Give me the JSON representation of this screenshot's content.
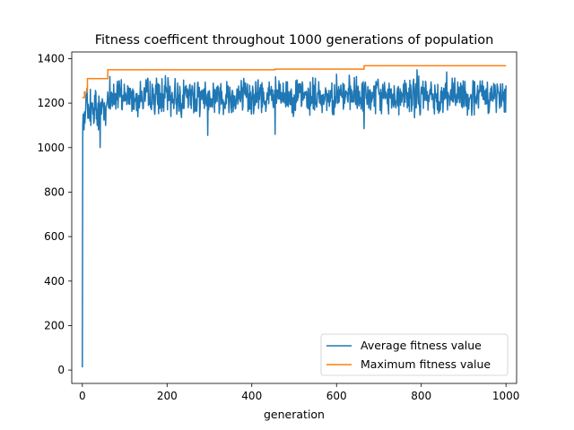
{
  "chart_data": {
    "type": "line",
    "title": "Fitness coefficent throughout 1000 generations of population",
    "xlabel": "generation",
    "ylabel": "",
    "xlim": [
      -25,
      1025
    ],
    "ylim": [
      -60,
      1430
    ],
    "xticks": [
      0,
      200,
      400,
      600,
      800,
      1000
    ],
    "yticks": [
      0,
      200,
      400,
      600,
      800,
      1000,
      1200,
      1400
    ],
    "grid": false,
    "legend_position": "lower-right",
    "series": [
      {
        "name": "Average fitness value",
        "color": "#1f77b4",
        "band": {
          "x_start": 8,
          "x_end": 1000,
          "center": 1230,
          "amplitude": 70,
          "seed": 7
        },
        "points": [
          [
            0,
            12
          ],
          [
            1,
            1100
          ],
          [
            2,
            1150
          ],
          [
            3,
            1120
          ],
          [
            4,
            1080
          ],
          [
            5,
            1160
          ],
          [
            6,
            1110
          ],
          [
            7,
            1140
          ],
          [
            15,
            1180
          ],
          [
            18,
            1120
          ],
          [
            20,
            1100
          ],
          [
            22,
            1200
          ],
          [
            25,
            1150
          ],
          [
            28,
            1120
          ],
          [
            30,
            1170
          ],
          [
            35,
            1100
          ],
          [
            38,
            1080
          ],
          [
            40,
            1200
          ],
          [
            42,
            1000
          ],
          [
            45,
            1150
          ],
          [
            48,
            1210
          ],
          [
            50,
            1180
          ],
          [
            55,
            1100
          ],
          [
            58,
            1200
          ],
          [
            60,
            1250
          ],
          [
            62,
            1180
          ],
          [
            65,
            1320
          ],
          [
            296,
            1055
          ],
          [
            455,
            1060
          ],
          [
            665,
            1085
          ],
          [
            600,
            1330
          ],
          [
            790,
            1350
          ],
          [
            860,
            1340
          ]
        ]
      },
      {
        "name": "Maximum fitness value",
        "color": "#ff7f0e",
        "points": [
          [
            0,
            1225
          ],
          [
            5,
            1225
          ],
          [
            5,
            1250
          ],
          [
            12,
            1250
          ],
          [
            12,
            1310
          ],
          [
            25,
            1310
          ],
          [
            60,
            1310
          ],
          [
            60,
            1350
          ],
          [
            455,
            1350
          ],
          [
            455,
            1353
          ],
          [
            665,
            1353
          ],
          [
            665,
            1368
          ],
          [
            1000,
            1368
          ]
        ]
      }
    ]
  }
}
